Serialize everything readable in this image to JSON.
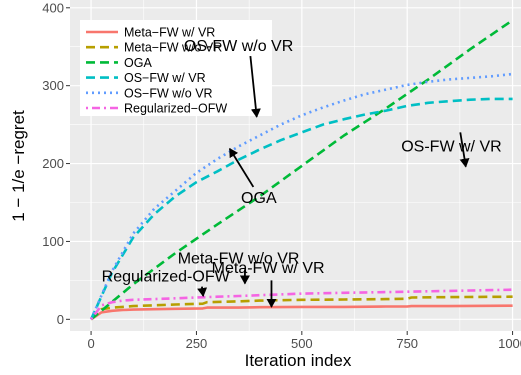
{
  "chart_data": {
    "type": "line",
    "xlabel": "Iteration index",
    "ylabel": "1 − 1/e −regret",
    "xlim": [
      -50,
      1020
    ],
    "ylim": [
      -15,
      410
    ],
    "xticks": [
      0,
      250,
      500,
      750,
      1000
    ],
    "yticks": [
      0,
      100,
      200,
      300,
      400
    ],
    "grid": true,
    "legend_position": "top-left",
    "series": [
      {
        "name": "Meta−FW w/ VR",
        "color": "#F8766D",
        "dash": "solid",
        "x": [
          0,
          25,
          50,
          75,
          100,
          150,
          200,
          265,
          275,
          350,
          400,
          500,
          600,
          700,
          750,
          760,
          850,
          1000
        ],
        "y": [
          0,
          9,
          11,
          12,
          12.5,
          13,
          13.5,
          14,
          15,
          15,
          15.5,
          16,
          16,
          16.5,
          16.5,
          17,
          17,
          17.5
        ]
      },
      {
        "name": "Meta−FW w/o VR",
        "color": "#B79F00",
        "dash": "dashed",
        "x": [
          0,
          25,
          50,
          75,
          100,
          150,
          200,
          265,
          275,
          350,
          400,
          500,
          600,
          700,
          750,
          760,
          850,
          1000
        ],
        "y": [
          0,
          13,
          15,
          16,
          17,
          18,
          19,
          20,
          22,
          23,
          24,
          25,
          25.5,
          26,
          26.5,
          28,
          28.5,
          29
        ]
      },
      {
        "name": "OGA",
        "color": "#00BA38",
        "dash": "dashed",
        "x": [
          0,
          100,
          200,
          300,
          400,
          500,
          600,
          700,
          800,
          900,
          1000
        ],
        "y": [
          0,
          45,
          85,
          122,
          158,
          197,
          236,
          271,
          308,
          347,
          384
        ]
      },
      {
        "name": "OS−FW w/ VR",
        "color": "#00BFC4",
        "dash": "dashed",
        "x": [
          0,
          50,
          100,
          150,
          200,
          250,
          300,
          350,
          400,
          450,
          500,
          550,
          600,
          650,
          700,
          750,
          800,
          850,
          900,
          950,
          1000
        ],
        "y": [
          0,
          60,
          105,
          135,
          158,
          176,
          190,
          205,
          218,
          230,
          240,
          250,
          257,
          263,
          268,
          274,
          278,
          280,
          282,
          283,
          283
        ]
      },
      {
        "name": "OS−FW w/o VR",
        "color": "#619CFF",
        "dash": "dotted",
        "x": [
          0,
          50,
          100,
          150,
          200,
          250,
          300,
          350,
          400,
          450,
          500,
          550,
          600,
          650,
          700,
          750,
          800,
          850,
          900,
          950,
          1000
        ],
        "y": [
          0,
          62,
          110,
          142,
          165,
          188,
          206,
          222,
          236,
          250,
          262,
          272,
          281,
          289,
          295,
          301,
          305,
          308,
          310,
          312,
          315
        ]
      },
      {
        "name": "Regularized−OFW",
        "color": "#F564E3",
        "dash": "dotdash",
        "x": [
          0,
          25,
          50,
          75,
          100,
          150,
          200,
          250,
          300,
          350,
          400,
          450,
          500,
          600,
          700,
          800,
          900,
          1000
        ],
        "y": [
          0,
          18,
          22,
          24,
          25,
          26,
          27,
          28,
          29,
          30,
          31,
          32,
          33,
          34,
          35,
          36,
          37,
          38
        ]
      }
    ],
    "annotations": [
      {
        "text": "OS-FW w/o VR",
        "label_at": [
          350,
          351
        ],
        "arrow_from": [
          378,
          338
        ],
        "arrow_to": [
          393,
          260
        ]
      },
      {
        "text": "OS-FW w/ VR",
        "label_at": [
          855,
          222
        ],
        "arrow_from": [
          876,
          240
        ],
        "arrow_to": [
          889,
          196
        ]
      },
      {
        "text": "OGA",
        "label_at": [
          398,
          156
        ],
        "arrow_from": [
          385,
          170
        ],
        "arrow_to": [
          329,
          219
        ]
      },
      {
        "text": "Meta-FW w/o VR",
        "label_at": [
          350,
          78
        ],
        "arrow_from": [
          365,
          64
        ],
        "arrow_to": [
          365,
          46
        ]
      },
      {
        "text": "Regularized-OFW",
        "label_at": [
          177,
          55
        ],
        "arrow_from": [
          263,
          42
        ],
        "arrow_to": [
          266,
          30
        ]
      },
      {
        "text": "Meta-FW w/ VR",
        "label_at": [
          420,
          66
        ],
        "arrow_from": [
          428,
          50
        ],
        "arrow_to": [
          428,
          16
        ]
      }
    ]
  }
}
